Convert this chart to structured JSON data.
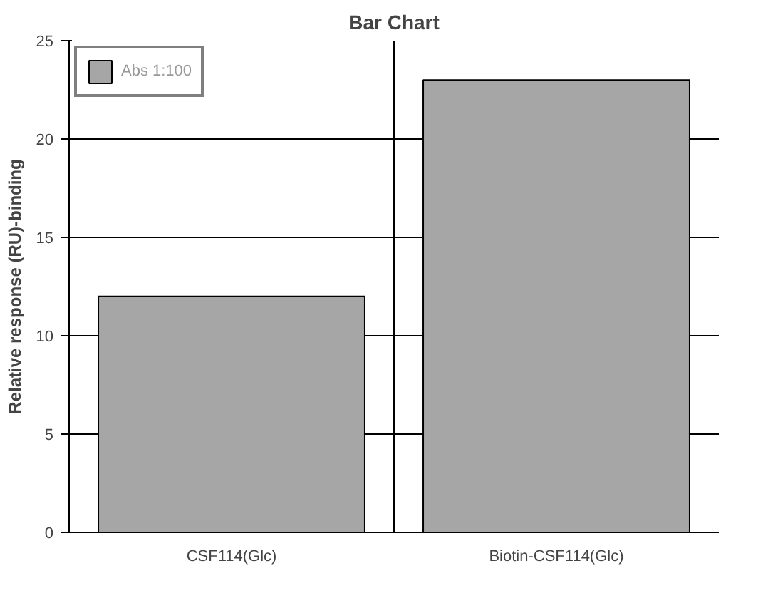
{
  "chart_data": {
    "type": "bar",
    "title": "Bar Chart",
    "ylabel": "Relative response (RU)-binding",
    "categories": [
      "CSF114(Glc)",
      "Biotin-CSF114(Glc)"
    ],
    "series": [
      {
        "name": "Abs 1:100",
        "color": "#a6a6a6",
        "values": [
          12,
          23
        ]
      }
    ],
    "ylim": [
      0,
      25
    ],
    "yticks": [
      0,
      5,
      10,
      15,
      20,
      25
    ],
    "grid": true,
    "legend": "top left"
  }
}
